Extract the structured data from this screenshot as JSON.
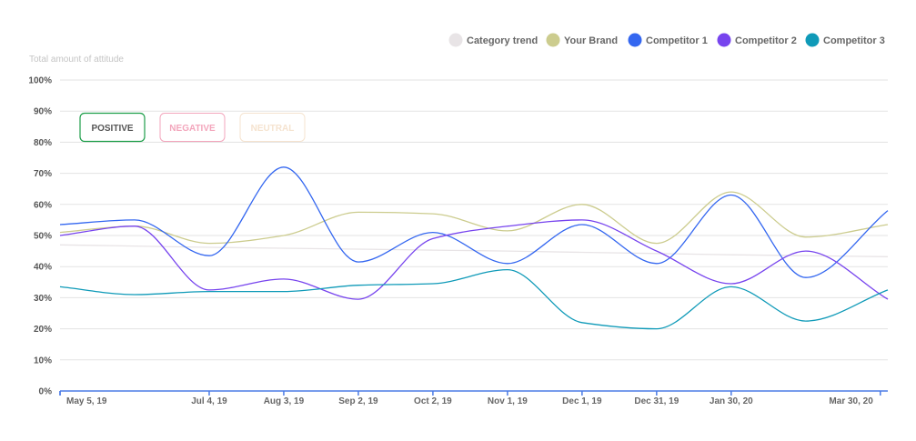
{
  "chart_data": {
    "type": "line",
    "ylabel": "Total amount of attitude",
    "ylim": [
      0,
      100
    ],
    "y_ticks": [
      "0%",
      "10%",
      "20%",
      "30%",
      "40%",
      "50%",
      "60%",
      "70%",
      "80%",
      "90%",
      "100%"
    ],
    "x_ticks": [
      {
        "label": "May 5, 19",
        "x": "2019-05-05"
      },
      {
        "label": "Jul 4, 19",
        "x": "2019-07-04"
      },
      {
        "label": "Aug 3, 19",
        "x": "2019-08-03"
      },
      {
        "label": "Sep 2, 19",
        "x": "2019-09-02"
      },
      {
        "label": "Oct 2, 19",
        "x": "2019-10-02"
      },
      {
        "label": "Nov 1, 19",
        "x": "2019-11-01"
      },
      {
        "label": "Dec 1, 19",
        "x": "2019-12-01"
      },
      {
        "label": "Dec 31, 19",
        "x": "2019-12-31"
      },
      {
        "label": "Jan 30, 20",
        "x": "2020-01-30"
      },
      {
        "label": "Mar 30, 20",
        "x": "2020-03-30"
      }
    ],
    "xlim": [
      "2019-05-05",
      "2020-04-02"
    ],
    "x": [
      "2019-05-05",
      "2019-06-04",
      "2019-07-04",
      "2019-08-03",
      "2019-09-02",
      "2019-10-02",
      "2019-11-01",
      "2019-12-01",
      "2019-12-31",
      "2020-01-30",
      "2020-02-29",
      "2020-04-02"
    ],
    "grid": true,
    "legend_position": "top-right",
    "series": [
      {
        "name": "Category trend",
        "color": "#e8e4e6",
        "values": [
          47,
          46.6,
          46.2,
          45.9,
          45.6,
          45.3,
          45.0,
          44.6,
          44.2,
          43.8,
          43.5,
          43.2
        ]
      },
      {
        "name": "Your Brand",
        "color": "#cccc8e",
        "values": [
          51,
          53,
          47.5,
          50,
          57.5,
          57,
          51.5,
          60,
          47.5,
          64,
          49.5,
          53.5
        ]
      },
      {
        "name": "Competitor 1",
        "color": "#3467f0",
        "values": [
          53.5,
          55,
          43.5,
          72,
          41.5,
          51,
          41,
          53.5,
          41,
          63,
          36.5,
          58
        ]
      },
      {
        "name": "Competitor 2",
        "color": "#7744ee",
        "values": [
          50,
          53,
          32.5,
          36,
          29.5,
          49,
          53,
          55,
          45,
          34.5,
          45,
          29.5
        ]
      },
      {
        "name": "Competitor 3",
        "color": "#0f9ab8",
        "values": [
          33.5,
          31,
          32,
          32,
          34,
          34.5,
          39,
          22,
          20,
          33.5,
          22.5,
          32.5
        ]
      }
    ]
  },
  "filters": [
    {
      "label": "POSITIVE",
      "color": "#1e9e4a",
      "active": true
    },
    {
      "label": "NEGATIVE",
      "color": "#f3a6bc",
      "active": false
    },
    {
      "label": "NEUTRAL",
      "color": "#f5e3cf",
      "active": false
    }
  ]
}
